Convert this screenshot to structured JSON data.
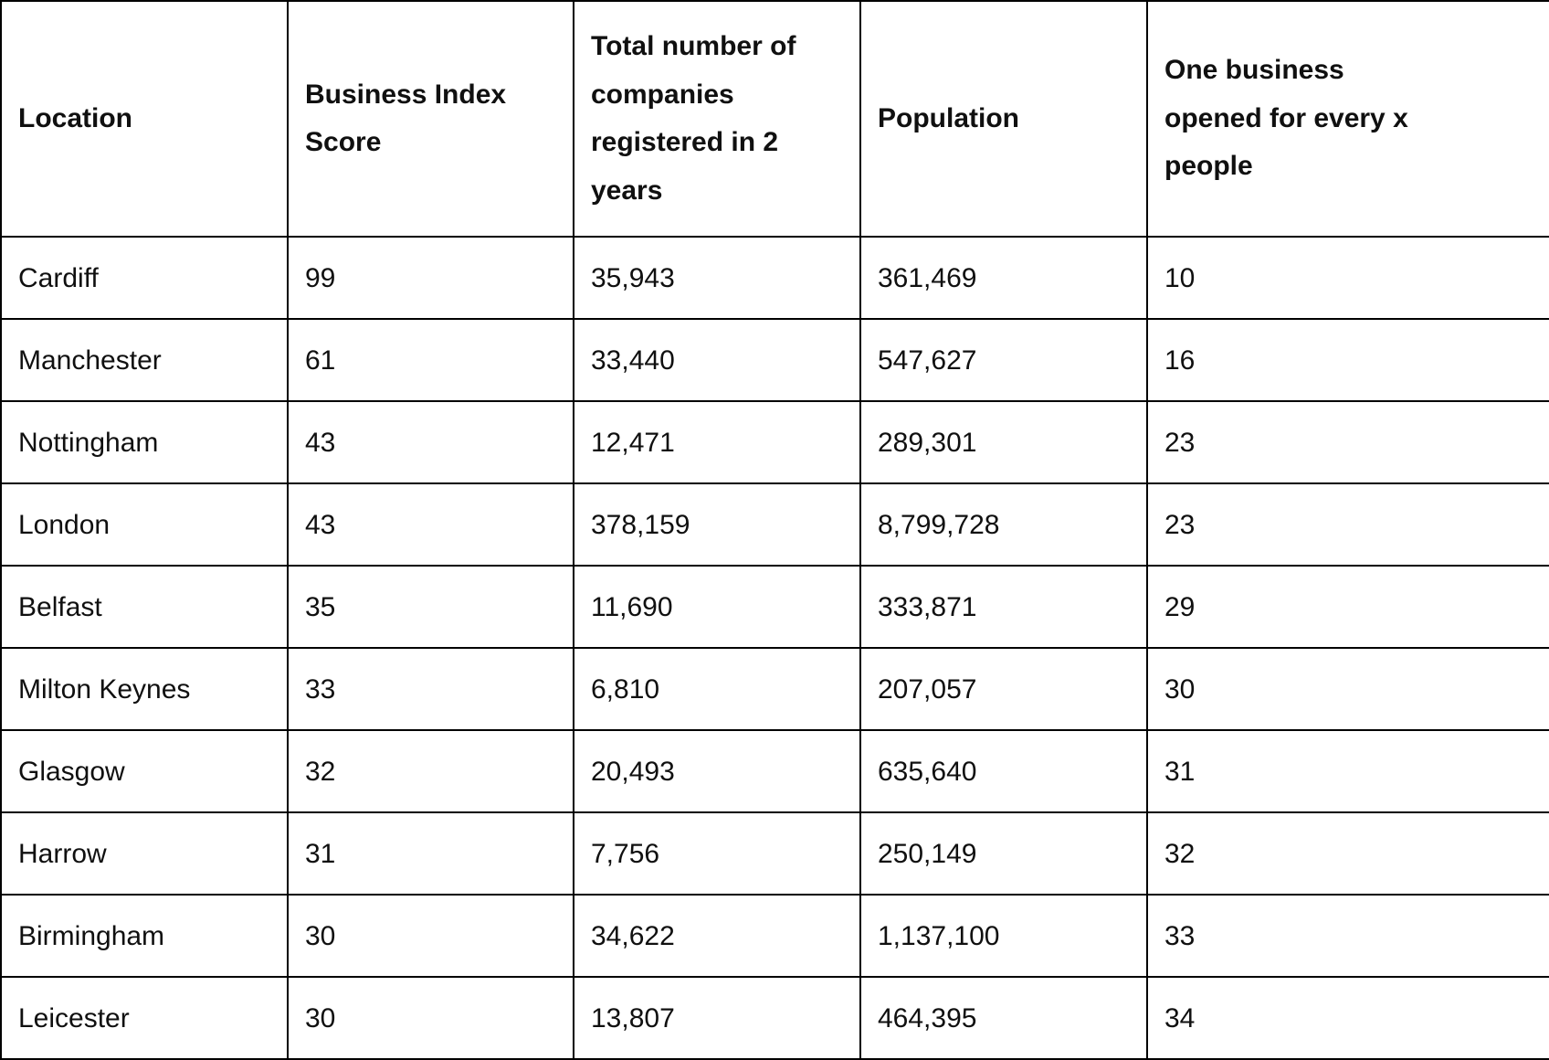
{
  "chart_data": {
    "type": "table",
    "columns": [
      {
        "label": "Location",
        "display": "Location"
      },
      {
        "label": "Business Index Score",
        "display": "Business Index\nScore"
      },
      {
        "label": "Total number of companies registered in 2 years",
        "display": "Total number of\ncompanies\nregistered in 2\nyears"
      },
      {
        "label": "Population",
        "display": "Population"
      },
      {
        "label": "One business opened for every x people",
        "display": "One business\nopened for every x\npeople"
      }
    ],
    "rows": [
      [
        "Cardiff",
        "99",
        "35,943",
        "361,469",
        "10"
      ],
      [
        "Manchester",
        "61",
        "33,440",
        "547,627",
        "16"
      ],
      [
        "Nottingham",
        "43",
        "12,471",
        "289,301",
        "23"
      ],
      [
        "London",
        "43",
        "378,159",
        "8,799,728",
        "23"
      ],
      [
        "Belfast",
        "35",
        "11,690",
        "333,871",
        "29"
      ],
      [
        "Milton Keynes",
        "33",
        "6,810",
        "207,057",
        "30"
      ],
      [
        "Glasgow",
        "32",
        "20,493",
        "635,640",
        "31"
      ],
      [
        "Harrow",
        "31",
        "7,756",
        "250,149",
        "32"
      ],
      [
        "Birmingham",
        "30",
        "34,622",
        "1,137,100",
        "33"
      ],
      [
        "Leicester",
        "30",
        "13,807",
        "464,395",
        "34"
      ]
    ],
    "column_keys": [
      "location",
      "business-index-score",
      "companies-registered",
      "population",
      "people-per-business"
    ]
  },
  "colors": {
    "background": "#ffffff",
    "border": "#000000",
    "text": "#101010"
  }
}
